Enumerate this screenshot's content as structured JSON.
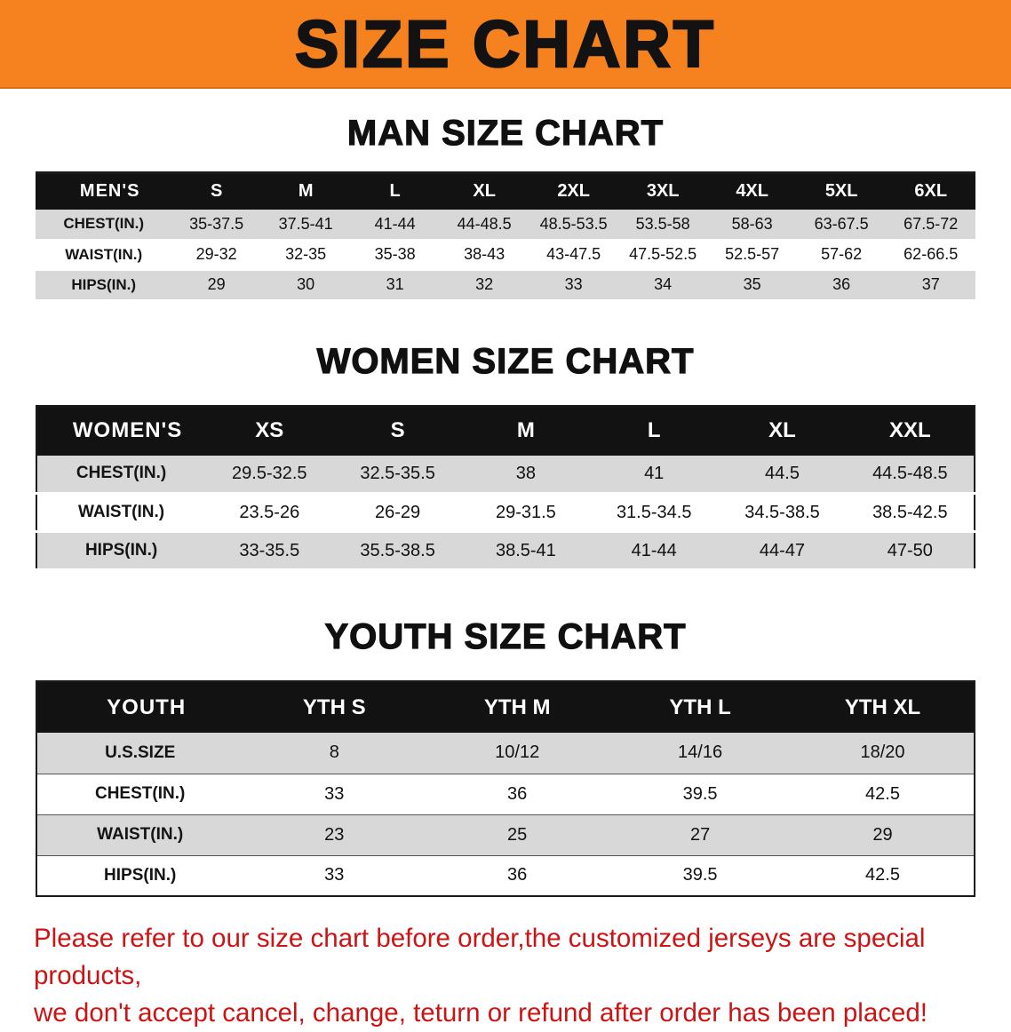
{
  "banner": {
    "title": "SIZE CHART"
  },
  "colors": {
    "banner_bg": "#F5821F",
    "table_header_bg": "#121212",
    "row_alt_bg": "#D8D8D8",
    "disclaimer_red": "#CC1414"
  },
  "men": {
    "section_title": "MAN SIZE CHART",
    "header": [
      "MEN'S",
      "S",
      "M",
      "L",
      "XL",
      "2XL",
      "3XL",
      "4XL",
      "5XL",
      "6XL"
    ],
    "rows": [
      [
        "CHEST(IN.)",
        "35-37.5",
        "37.5-41",
        "41-44",
        "44-48.5",
        "48.5-53.5",
        "53.5-58",
        "58-63",
        "63-67.5",
        "67.5-72"
      ],
      [
        "WAIST(IN.)",
        "29-32",
        "32-35",
        "35-38",
        "38-43",
        "43-47.5",
        "47.5-52.5",
        "52.5-57",
        "57-62",
        "62-66.5"
      ],
      [
        "HIPS(IN.)",
        "29",
        "30",
        "31",
        "32",
        "33",
        "34",
        "35",
        "36",
        "37"
      ]
    ]
  },
  "women": {
    "section_title": "WOMEN SIZE CHART",
    "header": [
      "WOMEN'S",
      "XS",
      "S",
      "M",
      "L",
      "XL",
      "XXL"
    ],
    "rows": [
      [
        "CHEST(IN.)",
        "29.5-32.5",
        "32.5-35.5",
        "38",
        "41",
        "44.5",
        "44.5-48.5"
      ],
      [
        "WAIST(IN.)",
        "23.5-26",
        "26-29",
        "29-31.5",
        "31.5-34.5",
        "34.5-38.5",
        "38.5-42.5"
      ],
      [
        "HIPS(IN.)",
        "33-35.5",
        "35.5-38.5",
        "38.5-41",
        "41-44",
        "44-47",
        "47-50"
      ]
    ]
  },
  "youth": {
    "section_title": "YOUTH SIZE CHART",
    "header": [
      "YOUTH",
      "YTH S",
      "YTH M",
      "YTH L",
      "YTH XL"
    ],
    "rows": [
      [
        "U.S.SIZE",
        "8",
        "10/12",
        "14/16",
        "18/20"
      ],
      [
        "CHEST(IN.)",
        "33",
        "36",
        "39.5",
        "42.5"
      ],
      [
        "WAIST(IN.)",
        "23",
        "25",
        "27",
        "29"
      ],
      [
        "HIPS(IN.)",
        "33",
        "36",
        "39.5",
        "42.5"
      ]
    ]
  },
  "disclaimer": {
    "line1": "Please refer to our size chart before order,the customized jerseys are special products,",
    "line2": "we don't accept cancel, change, teturn or refund after order has been placed!"
  }
}
